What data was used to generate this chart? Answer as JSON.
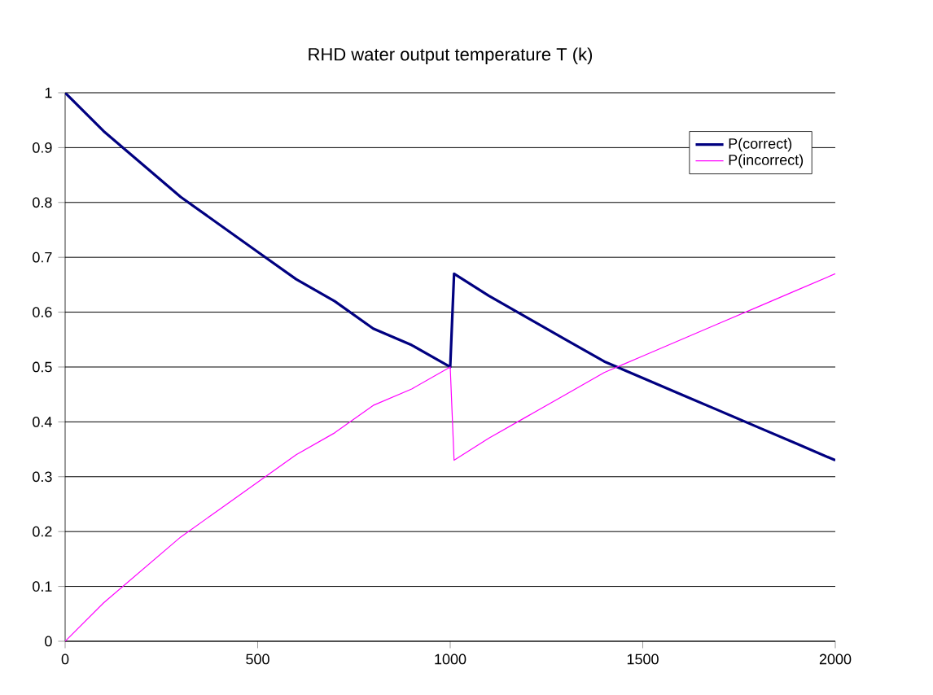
{
  "chart_data": {
    "type": "line",
    "title": "RHD water output temperature T (k)",
    "x": [
      0,
      100,
      200,
      300,
      400,
      500,
      600,
      700,
      800,
      900,
      1000,
      1010,
      1100,
      1200,
      1300,
      1400,
      1500,
      1600,
      1700,
      1800,
      1900,
      2000
    ],
    "series": [
      {
        "name": "P(correct)",
        "color": "#000080",
        "values": [
          1,
          0.93,
          0.87,
          0.81,
          0.76,
          0.71,
          0.66,
          0.62,
          0.57,
          0.54,
          0.5,
          0.67,
          0.63,
          0.59,
          0.55,
          0.51,
          0.48,
          0.45,
          0.42,
          0.39,
          0.36,
          0.33
        ]
      },
      {
        "name": "P(incorrect)",
        "color": "#ff00ff",
        "values": [
          0,
          0.07,
          0.13,
          0.19,
          0.24,
          0.29,
          0.34,
          0.38,
          0.43,
          0.46,
          0.5,
          0.33,
          0.37,
          0.41,
          0.45,
          0.49,
          0.52,
          0.55,
          0.58,
          0.61,
          0.64,
          0.67
        ]
      }
    ],
    "xlim": [
      0,
      2000
    ],
    "xticks": [
      0,
      500,
      1000,
      1500,
      2000
    ],
    "ylim": [
      0,
      1
    ],
    "yticks": [
      0,
      0.1,
      0.2,
      0.3,
      0.4,
      0.5,
      0.6,
      0.7,
      0.8,
      0.9,
      1
    ],
    "grid": "y",
    "legend": "top right",
    "marker": "none",
    "line_style": "solid"
  }
}
